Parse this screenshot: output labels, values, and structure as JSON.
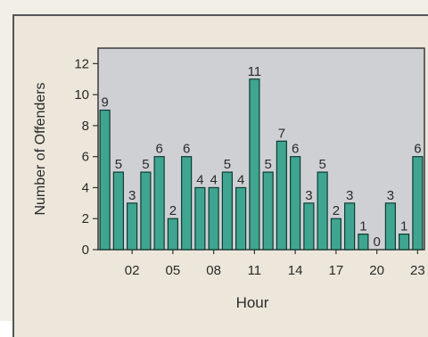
{
  "chart_data": {
    "type": "bar",
    "xlabel": "Hour",
    "ylabel": "Number of Offenders",
    "categories": [
      "00",
      "01",
      "02",
      "03",
      "04",
      "05",
      "06",
      "07",
      "08",
      "09",
      "10",
      "11",
      "12",
      "13",
      "14",
      "15",
      "16",
      "17",
      "18",
      "19",
      "20",
      "21",
      "22",
      "23"
    ],
    "values": [
      9,
      5,
      3,
      5,
      6,
      2,
      6,
      4,
      4,
      5,
      4,
      11,
      5,
      7,
      6,
      3,
      5,
      2,
      3,
      1,
      0,
      3,
      1,
      6
    ],
    "x_tick_labels": [
      "02",
      "05",
      "08",
      "11",
      "14",
      "17",
      "20",
      "23"
    ],
    "y_ticks": [
      0,
      2,
      4,
      6,
      8,
      10,
      12
    ],
    "ylim": [
      0,
      13
    ],
    "grid": false,
    "bar_color": "#3fa590",
    "bar_edge_color": "#0e3b33",
    "plot_background": "#cfd0d4"
  }
}
